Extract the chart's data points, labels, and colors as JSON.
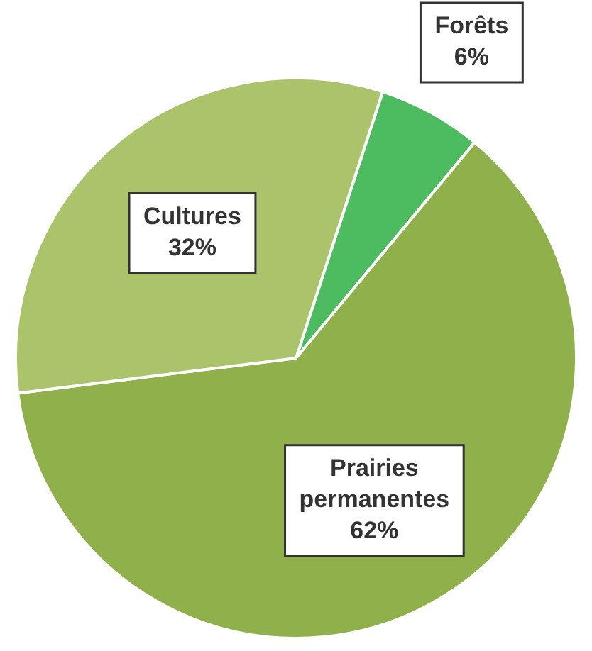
{
  "chart_data": {
    "type": "pie",
    "categories": [
      "Forêts",
      "Prairies permanentes",
      "Cultures"
    ],
    "values": [
      6,
      62,
      32
    ],
    "colors": [
      "#4dbb5f",
      "#8fb04b",
      "#abc46c"
    ],
    "value_labels": [
      "6%",
      "62%",
      "32%"
    ],
    "legend": false
  }
}
